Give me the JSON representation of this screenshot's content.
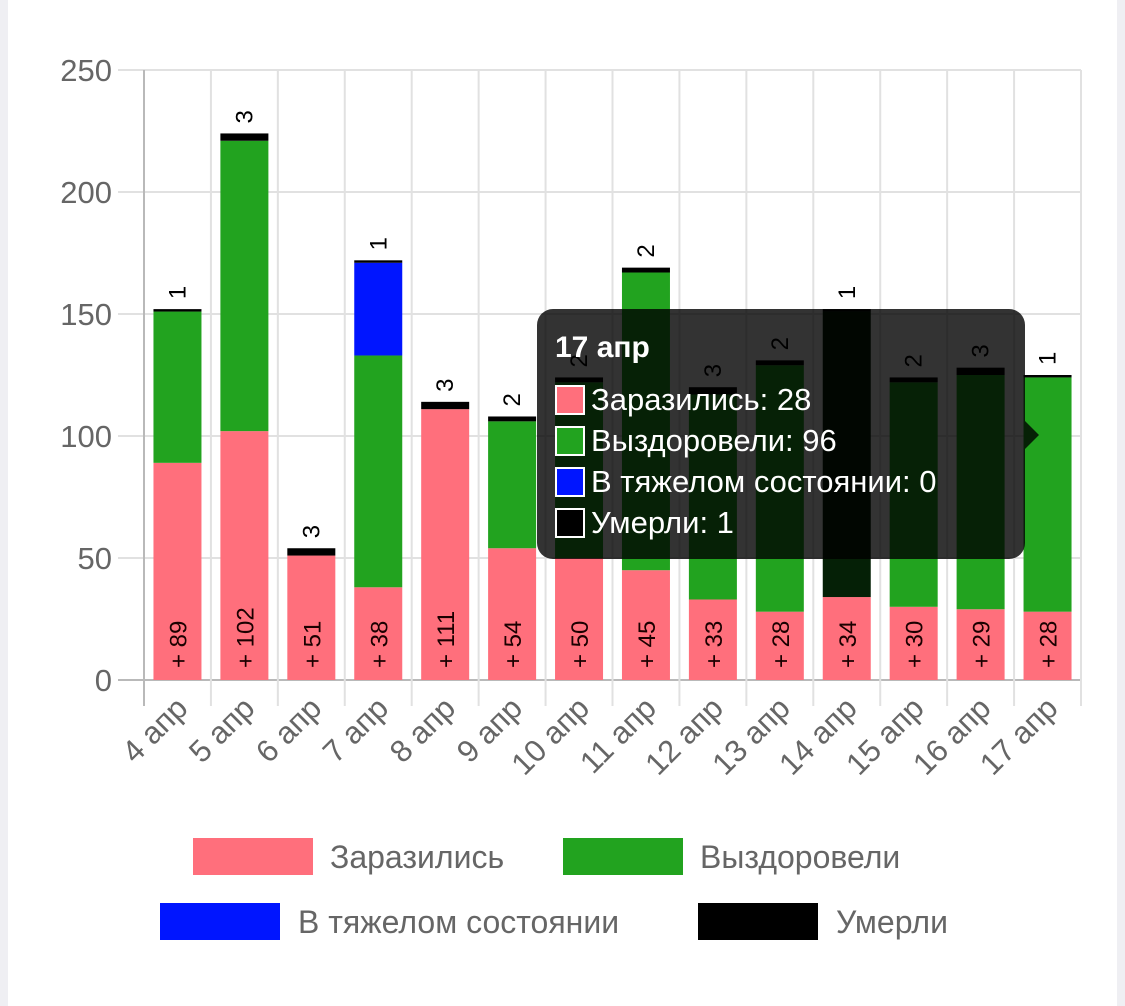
{
  "chart_data": {
    "type": "bar",
    "stacked": true,
    "categories": [
      "4 апр",
      "5 апр",
      "6 апр",
      "7 апр",
      "8 апр",
      "9 апр",
      "10 апр",
      "11 апр",
      "12 апр",
      "13 апр",
      "14 апр",
      "15 апр",
      "16 апр",
      "17 апр"
    ],
    "series": [
      {
        "name": "Заразились",
        "color": "#ff6f7c",
        "values": [
          89,
          102,
          51,
          38,
          111,
          54,
          50,
          45,
          33,
          28,
          34,
          30,
          29,
          28
        ]
      },
      {
        "name": "Выздоровели",
        "color": "#22a31f",
        "values": [
          62,
          119,
          0,
          95,
          0,
          52,
          72,
          122,
          84,
          101,
          117,
          92,
          96,
          96
        ]
      },
      {
        "name": "В тяжелом состоянии",
        "color": "#0015ff",
        "values": [
          0,
          0,
          0,
          38,
          0,
          0,
          0,
          0,
          0,
          0,
          0,
          0,
          0,
          0
        ]
      },
      {
        "name": "Умерли",
        "color": "#000000",
        "values": [
          1,
          3,
          3,
          1,
          3,
          2,
          2,
          2,
          3,
          2,
          1,
          2,
          3,
          1
        ]
      }
    ],
    "bar_labels_bottom": [
      "+ 89",
      "+ 102",
      "+ 51",
      "+ 38",
      "+ 111",
      "+ 54",
      "+ 50",
      "+ 45",
      "+ 33",
      "+ 28",
      "+ 34",
      "+ 30",
      "+ 29",
      "+ 28"
    ],
    "bar_labels_top": [
      "1",
      "3",
      "3",
      "1",
      "3",
      "2",
      "2",
      "2",
      "3",
      "2",
      "1",
      "2",
      "3",
      "1"
    ],
    "yticks": [
      "0",
      "50",
      "100",
      "150",
      "200",
      "250"
    ],
    "ylim": [
      0,
      250
    ],
    "grid": true,
    "legend_position": "bottom",
    "highlighted_category": "17 апр"
  },
  "tooltip": {
    "title": "17 апр",
    "rows": [
      {
        "label": "Заразились: 28",
        "color": "#ff6f7c"
      },
      {
        "label": "Выздоровели: 96",
        "color": "#22a31f"
      },
      {
        "label": "В тяжелом состоянии: 0",
        "color": "#0015ff"
      },
      {
        "label": "Умерли: 1",
        "color": "#000000"
      }
    ]
  }
}
